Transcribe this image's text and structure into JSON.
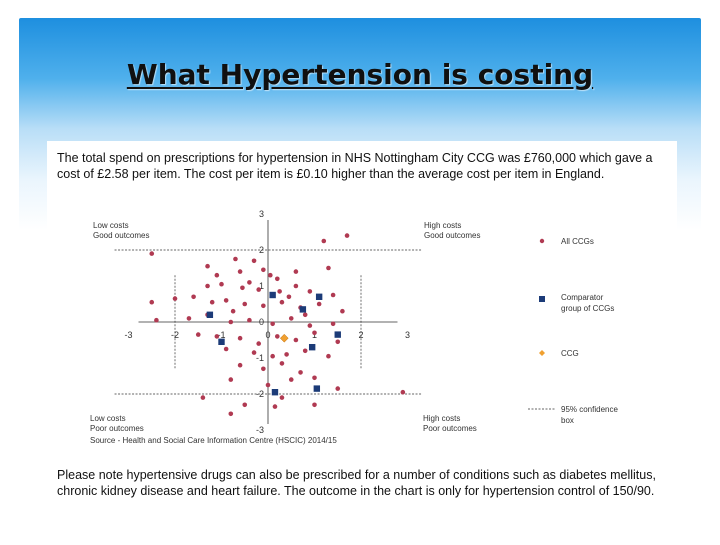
{
  "slide": {
    "title": "What Hypertension is costing",
    "intro": "The total spend on prescriptions for hypertension in NHS Nottingham City CCG was £760,000 which gave a cost of £2.58 per item. The cost per item is £0.10 higher than the average cost per item in England.",
    "footnote": "Please note hypertensive drugs can also be prescribed for a number of conditions such as diabetes mellitus, chronic kidney disease and heart failure. The outcome in the chart is only for hypertension control of 150/90."
  },
  "chart_data": {
    "type": "scatter",
    "xlim": [
      -3,
      3
    ],
    "ylim": [
      -3,
      3
    ],
    "x_ticks": [
      "-3",
      "-2",
      "-1",
      "0",
      "1",
      "2",
      "3"
    ],
    "y_ticks": [
      "3",
      "2",
      "1",
      "0",
      "-1",
      "-2",
      "-3"
    ],
    "confidence_box": [
      -2,
      2
    ],
    "quadrant_labels": {
      "top_left": [
        "Low costs",
        "Good outcomes"
      ],
      "top_right": [
        "High costs",
        "Good outcomes"
      ],
      "bottom_left": [
        "Low costs",
        "Poor outcomes"
      ],
      "bottom_right": [
        "High costs",
        "Poor outcomes"
      ]
    },
    "source": "Source - Health and Social Care Information Centre (HSCIC) 2014/15",
    "legend_position": "right",
    "colors": {
      "all_ccgs": "#b03a52",
      "comparator": "#1c3b78",
      "ccg": "#f0a030"
    },
    "series": [
      {
        "name": "All CCGs",
        "marker": "circle",
        "points": [
          [
            -2.5,
            1.9
          ],
          [
            -1.3,
            1.55
          ],
          [
            -1.1,
            1.3
          ],
          [
            -0.7,
            1.75
          ],
          [
            -0.6,
            1.4
          ],
          [
            -0.3,
            1.7
          ],
          [
            -0.1,
            1.45
          ],
          [
            0.2,
            1.2
          ],
          [
            0.6,
            1.4
          ],
          [
            1.3,
            1.5
          ],
          [
            1.7,
            2.4
          ],
          [
            1.2,
            2.25
          ],
          [
            -1.3,
            1.0
          ],
          [
            -1.0,
            1.05
          ],
          [
            -0.55,
            0.95
          ],
          [
            -0.2,
            0.9
          ],
          [
            0.25,
            0.85
          ],
          [
            0.6,
            1.0
          ],
          [
            0.9,
            0.85
          ],
          [
            1.4,
            0.75
          ],
          [
            -2.0,
            0.65
          ],
          [
            -1.6,
            0.7
          ],
          [
            -1.2,
            0.55
          ],
          [
            -0.9,
            0.6
          ],
          [
            -0.5,
            0.5
          ],
          [
            -0.1,
            0.45
          ],
          [
            0.3,
            0.55
          ],
          [
            0.7,
            0.4
          ],
          [
            1.1,
            0.5
          ],
          [
            1.6,
            0.3
          ],
          [
            -2.5,
            0.55
          ],
          [
            -2.4,
            0.05
          ],
          [
            -1.7,
            0.1
          ],
          [
            -1.3,
            0.2
          ],
          [
            -0.8,
            0.0
          ],
          [
            -0.4,
            0.05
          ],
          [
            0.1,
            -0.05
          ],
          [
            0.5,
            0.1
          ],
          [
            0.9,
            -0.1
          ],
          [
            1.4,
            -0.05
          ],
          [
            -1.5,
            -0.35
          ],
          [
            -1.1,
            -0.4
          ],
          [
            -0.6,
            -0.45
          ],
          [
            -0.2,
            -0.6
          ],
          [
            0.2,
            -0.4
          ],
          [
            0.6,
            -0.5
          ],
          [
            1.0,
            -0.3
          ],
          [
            1.5,
            -0.55
          ],
          [
            -0.9,
            -0.75
          ],
          [
            -0.3,
            -0.85
          ],
          [
            0.1,
            -0.95
          ],
          [
            0.4,
            -0.9
          ],
          [
            0.8,
            -0.8
          ],
          [
            1.3,
            -0.95
          ],
          [
            -0.6,
            -1.2
          ],
          [
            -0.1,
            -1.3
          ],
          [
            0.3,
            -1.15
          ],
          [
            0.7,
            -1.4
          ],
          [
            -0.8,
            -1.6
          ],
          [
            0.0,
            -1.75
          ],
          [
            0.5,
            -1.6
          ],
          [
            1.0,
            -1.55
          ],
          [
            1.5,
            -1.85
          ],
          [
            2.9,
            -1.95
          ],
          [
            0.3,
            -2.1
          ],
          [
            -0.5,
            -2.3
          ],
          [
            1.0,
            -2.3
          ],
          [
            -0.8,
            -2.55
          ],
          [
            -1.4,
            -2.1
          ],
          [
            0.15,
            -2.35
          ],
          [
            -0.4,
            1.1
          ],
          [
            0.05,
            1.3
          ],
          [
            0.45,
            0.7
          ],
          [
            -0.75,
            0.3
          ],
          [
            0.8,
            0.2
          ]
        ]
      },
      {
        "name": "Comparator group of CCGs",
        "marker": "square",
        "points": [
          [
            0.1,
            0.75
          ],
          [
            1.1,
            0.7
          ],
          [
            0.75,
            0.35
          ],
          [
            -1.25,
            0.2
          ],
          [
            1.5,
            -0.35
          ],
          [
            -1.0,
            -0.55
          ],
          [
            0.95,
            -0.7
          ],
          [
            0.15,
            -1.95
          ],
          [
            1.05,
            -1.85
          ]
        ]
      },
      {
        "name": "CCG",
        "marker": "diamond",
        "points": [
          [
            0.35,
            -0.45
          ]
        ]
      }
    ],
    "legend": {
      "all": "All CCGs",
      "comparator_line1": "Comparator",
      "comparator_line2": "group of CCGs",
      "ccg": "CCG",
      "ci_line1": "95% confidence",
      "ci_line2": "box"
    }
  }
}
